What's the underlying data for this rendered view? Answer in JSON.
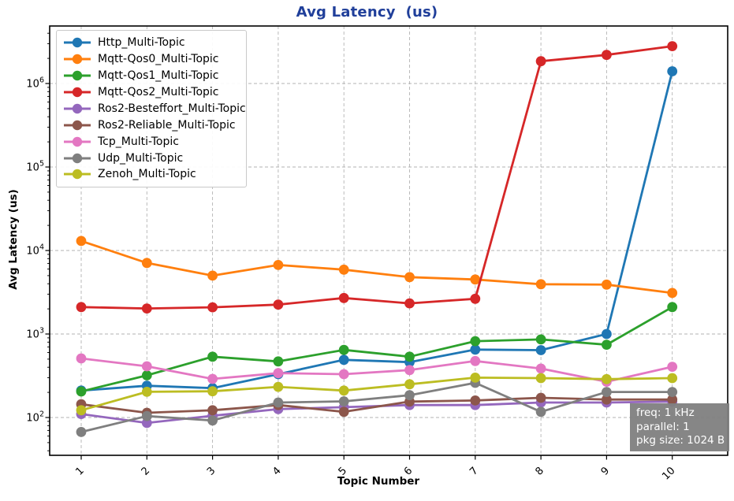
{
  "figure": {
    "title_color": "#203f9a",
    "background": "#ffffff",
    "grid_color": "#b3b3b3",
    "spine_color": "#000000"
  },
  "chart_data": {
    "type": "line",
    "title": "Avg Latency  (us)",
    "xlabel": "Topic Number",
    "ylabel": "Avg Latency (us)",
    "x": [
      1,
      2,
      3,
      4,
      5,
      6,
      7,
      8,
      9,
      10
    ],
    "x_tick_labels": [
      "1",
      "2",
      "3",
      "4",
      "5",
      "6",
      "7",
      "8",
      "9",
      "10"
    ],
    "y_scale": "log",
    "y_tick_base": "10",
    "y_tick_exponents": [
      2,
      3,
      4,
      5,
      6
    ],
    "ylim": [
      35,
      4900000
    ],
    "grid": true,
    "grid_style": "dashed",
    "legend_position": "upper-left",
    "series": [
      {
        "name": "Http_Multi-Topic",
        "color": "#1f77b4",
        "values": [
          210,
          240,
          225,
          330,
          490,
          460,
          650,
          640,
          1000,
          1400000
        ]
      },
      {
        "name": "Mqtt-Qos0_Multi-Topic",
        "color": "#ff7f0e",
        "values": [
          13000,
          7100,
          5000,
          6700,
          5900,
          4800,
          4500,
          3950,
          3900,
          3100
        ]
      },
      {
        "name": "Mqtt-Qos1_Multi-Topic",
        "color": "#2ca02c",
        "values": [
          205,
          320,
          535,
          470,
          645,
          535,
          820,
          860,
          745,
          2100
        ]
      },
      {
        "name": "Mqtt-Qos2_Multi-Topic",
        "color": "#d62728",
        "values": [
          2100,
          2020,
          2090,
          2250,
          2700,
          2330,
          2640,
          1850000,
          2200000,
          2800000
        ]
      },
      {
        "name": "Ros2-Besteffort_Multi-Topic",
        "color": "#9467bd",
        "values": [
          110,
          86,
          105,
          126,
          133,
          141,
          141,
          151,
          151,
          155
        ]
      },
      {
        "name": "Ros2-Reliable_Multi-Topic",
        "color": "#8c564b",
        "values": [
          144,
          114,
          122,
          141,
          117,
          155,
          160,
          172,
          164,
          164
        ]
      },
      {
        "name": "Tcp_Multi-Topic",
        "color": "#e377c2",
        "values": [
          510,
          410,
          290,
          340,
          330,
          370,
          475,
          385,
          268,
          405
        ]
      },
      {
        "name": "Udp_Multi-Topic",
        "color": "#7f7f7f",
        "values": [
          67,
          104,
          92,
          151,
          156,
          185,
          260,
          117,
          202,
          202
        ]
      },
      {
        "name": "Zenoh_Multi-Topic",
        "color": "#bcbd22",
        "values": [
          122,
          203,
          206,
          233,
          210,
          250,
          300,
          296,
          288,
          296
        ]
      }
    ]
  },
  "annotation": {
    "lines": [
      "freq: 1 kHz",
      "parallel: 1",
      "pkg size: 1024 B"
    ],
    "bg": "#808080",
    "text_color": "#ffffff"
  }
}
